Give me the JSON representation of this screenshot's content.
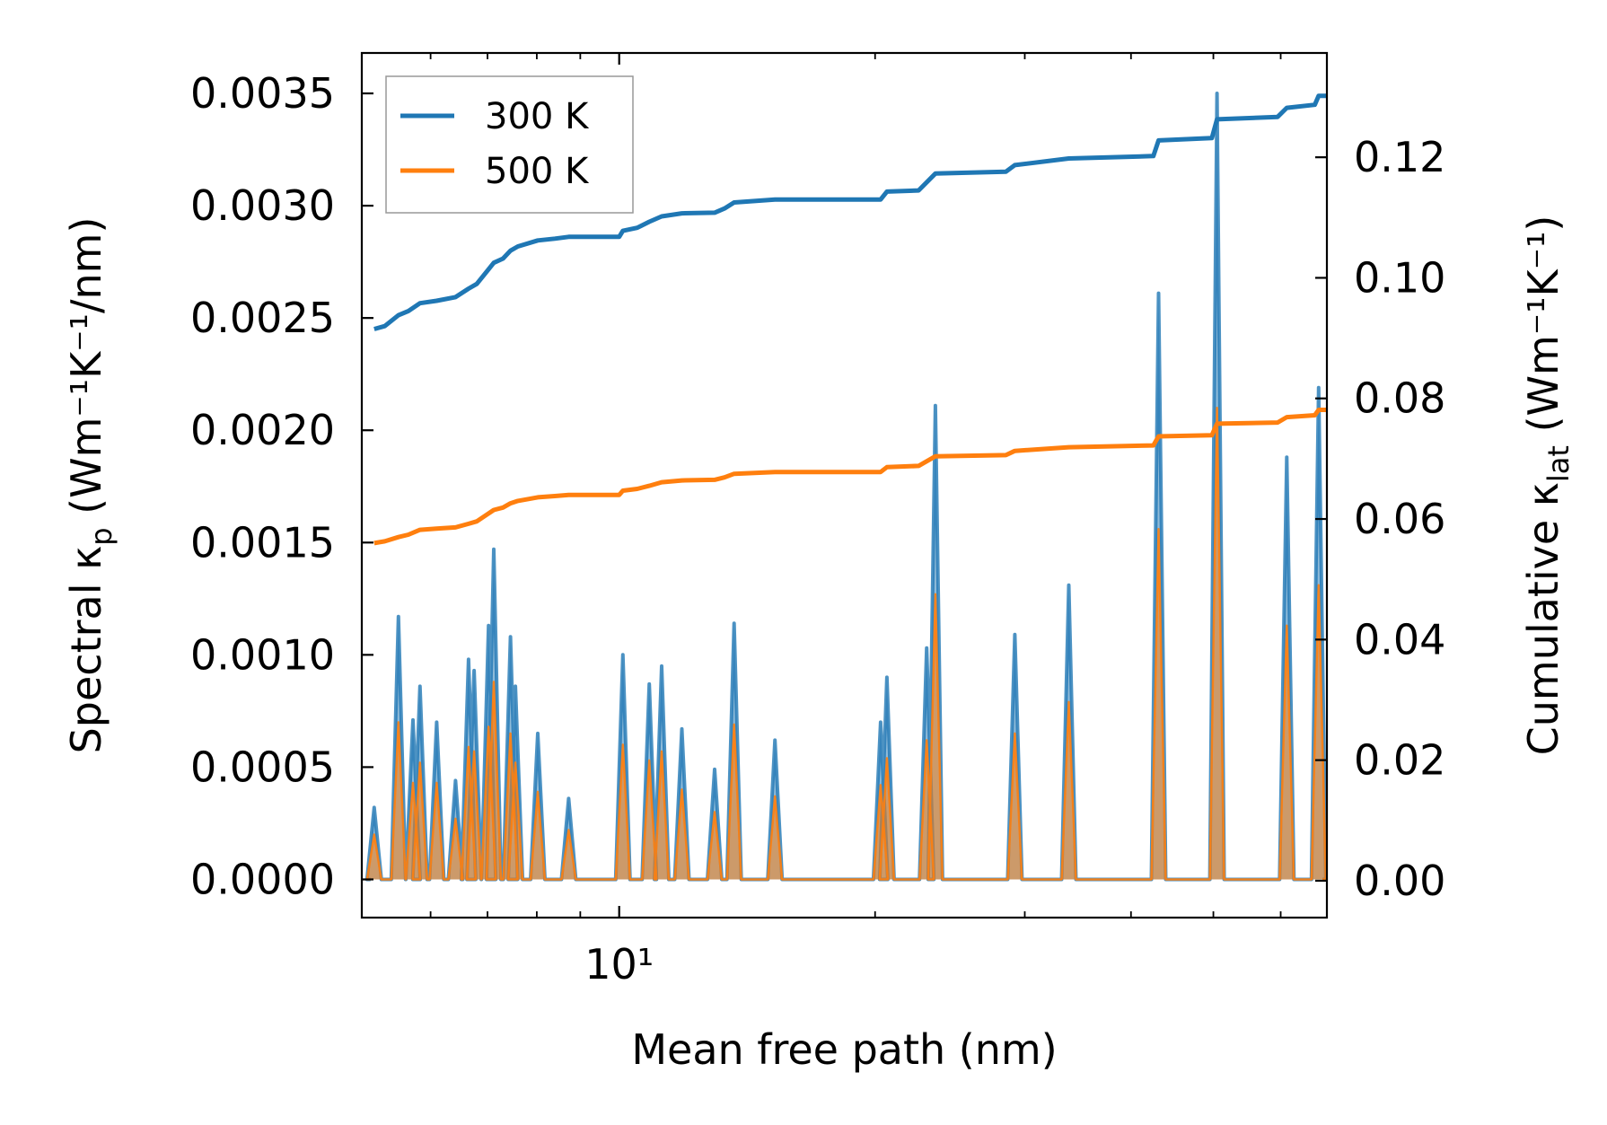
{
  "chart_data": {
    "type": "line",
    "title": "",
    "xlabel": "Mean free path (nm)",
    "ylabel_left": {
      "main": "Spectral κ",
      "sub": "p",
      "unit": " (Wm⁻¹K⁻¹/nm)"
    },
    "ylabel_right": {
      "main": "Cumulative κ",
      "sub": "lat",
      "unit": " (Wm⁻¹K⁻¹)"
    },
    "xscale": "log",
    "xlim": [
      4.98,
      68.0
    ],
    "ylim_left": [
      -0.00017,
      0.00368
    ],
    "ylim_right": [
      -0.00612,
      0.1373
    ],
    "x_major_tick": {
      "value": 10,
      "label": "10¹"
    },
    "x_minor_ticks": [
      6,
      7,
      8,
      9,
      20,
      30,
      40,
      50,
      60
    ],
    "yticks_left": [
      {
        "value": 0.0,
        "label": "0.0000"
      },
      {
        "value": 0.0005,
        "label": "0.0005"
      },
      {
        "value": 0.001,
        "label": "0.0010"
      },
      {
        "value": 0.0015,
        "label": "0.0015"
      },
      {
        "value": 0.002,
        "label": "0.0020"
      },
      {
        "value": 0.0025,
        "label": "0.0025"
      },
      {
        "value": 0.003,
        "label": "0.0030"
      },
      {
        "value": 0.0035,
        "label": "0.0035"
      }
    ],
    "yticks_right": [
      {
        "value": 0.0,
        "label": "0.00"
      },
      {
        "value": 0.02,
        "label": "0.02"
      },
      {
        "value": 0.04,
        "label": "0.04"
      },
      {
        "value": 0.06,
        "label": "0.06"
      },
      {
        "value": 0.08,
        "label": "0.08"
      },
      {
        "value": 0.1,
        "label": "0.10"
      },
      {
        "value": 0.12,
        "label": "0.12"
      }
    ],
    "legend": {
      "placement": "top-left",
      "entries": [
        {
          "name": "300 K",
          "color": "#1f77b4"
        },
        {
          "name": "500 K",
          "color": "#ff7f0e"
        }
      ]
    },
    "spectral_series": [
      {
        "name": "300 K",
        "color": "#1f77b4",
        "axis": "left",
        "peaks": [
          {
            "x": 5.15,
            "y": 0.00032
          },
          {
            "x": 5.5,
            "y": 0.00117
          },
          {
            "x": 5.72,
            "y": 0.00071
          },
          {
            "x": 5.83,
            "y": 0.00086
          },
          {
            "x": 6.1,
            "y": 0.0007
          },
          {
            "x": 6.42,
            "y": 0.00044
          },
          {
            "x": 6.65,
            "y": 0.00098
          },
          {
            "x": 6.75,
            "y": 0.00093
          },
          {
            "x": 7.02,
            "y": 0.00113
          },
          {
            "x": 7.12,
            "y": 0.00147
          },
          {
            "x": 7.45,
            "y": 0.00108
          },
          {
            "x": 7.55,
            "y": 0.00086
          },
          {
            "x": 8.02,
            "y": 0.00065
          },
          {
            "x": 8.72,
            "y": 0.00036
          },
          {
            "x": 10.1,
            "y": 0.001
          },
          {
            "x": 10.85,
            "y": 0.00087
          },
          {
            "x": 11.22,
            "y": 0.00095
          },
          {
            "x": 11.85,
            "y": 0.00067
          },
          {
            "x": 12.95,
            "y": 0.00049
          },
          {
            "x": 13.65,
            "y": 0.00114
          },
          {
            "x": 15.25,
            "y": 0.00062
          },
          {
            "x": 20.3,
            "y": 0.0007
          },
          {
            "x": 20.65,
            "y": 0.0009
          },
          {
            "x": 23.0,
            "y": 0.00103
          },
          {
            "x": 23.55,
            "y": 0.00211
          },
          {
            "x": 29.2,
            "y": 0.00109
          },
          {
            "x": 33.8,
            "y": 0.00131
          },
          {
            "x": 43.1,
            "y": 0.00261
          },
          {
            "x": 50.5,
            "y": 0.0035
          },
          {
            "x": 61.0,
            "y": 0.00188
          },
          {
            "x": 66.5,
            "y": 0.00219
          }
        ]
      },
      {
        "name": "500 K",
        "color": "#ff7f0e",
        "axis": "left",
        "peaks": [
          {
            "x": 5.15,
            "y": 0.0002
          },
          {
            "x": 5.5,
            "y": 0.0007
          },
          {
            "x": 5.72,
            "y": 0.00043
          },
          {
            "x": 5.83,
            "y": 0.00052
          },
          {
            "x": 6.1,
            "y": 0.00043
          },
          {
            "x": 6.42,
            "y": 0.00027
          },
          {
            "x": 6.65,
            "y": 0.00059
          },
          {
            "x": 6.75,
            "y": 0.00057
          },
          {
            "x": 7.02,
            "y": 0.00068
          },
          {
            "x": 7.12,
            "y": 0.00088
          },
          {
            "x": 7.45,
            "y": 0.00065
          },
          {
            "x": 7.55,
            "y": 0.00052
          },
          {
            "x": 8.02,
            "y": 0.00039
          },
          {
            "x": 8.72,
            "y": 0.00022
          },
          {
            "x": 10.1,
            "y": 0.0006
          },
          {
            "x": 10.85,
            "y": 0.00053
          },
          {
            "x": 11.22,
            "y": 0.00057
          },
          {
            "x": 11.85,
            "y": 0.0004
          },
          {
            "x": 12.95,
            "y": 0.0003
          },
          {
            "x": 13.65,
            "y": 0.00069
          },
          {
            "x": 15.25,
            "y": 0.00037
          },
          {
            "x": 20.3,
            "y": 0.00042
          },
          {
            "x": 20.65,
            "y": 0.00054
          },
          {
            "x": 23.0,
            "y": 0.00062
          },
          {
            "x": 23.55,
            "y": 0.00127
          },
          {
            "x": 29.2,
            "y": 0.00065
          },
          {
            "x": 33.8,
            "y": 0.00079
          },
          {
            "x": 43.1,
            "y": 0.00156
          },
          {
            "x": 50.5,
            "y": 0.0021
          },
          {
            "x": 61.0,
            "y": 0.00113
          },
          {
            "x": 66.5,
            "y": 0.00131
          }
        ]
      }
    ],
    "cumulative_series": [
      {
        "name": "300 K",
        "color": "#1f77b4",
        "axis": "right",
        "points": [
          [
            5.15,
            0.0915
          ],
          [
            5.3,
            0.092
          ],
          [
            5.5,
            0.0938
          ],
          [
            5.65,
            0.0945
          ],
          [
            5.83,
            0.0958
          ],
          [
            6.1,
            0.0962
          ],
          [
            6.42,
            0.0968
          ],
          [
            6.65,
            0.0982
          ],
          [
            6.8,
            0.099
          ],
          [
            7.0,
            0.1012
          ],
          [
            7.12,
            0.1025
          ],
          [
            7.3,
            0.1032
          ],
          [
            7.45,
            0.1045
          ],
          [
            7.6,
            0.1052
          ],
          [
            8.02,
            0.1062
          ],
          [
            8.4,
            0.1065
          ],
          [
            8.72,
            0.1068
          ],
          [
            10.0,
            0.1068
          ],
          [
            10.1,
            0.1078
          ],
          [
            10.5,
            0.1083
          ],
          [
            10.85,
            0.1093
          ],
          [
            11.22,
            0.1102
          ],
          [
            11.85,
            0.1107
          ],
          [
            12.95,
            0.1108
          ],
          [
            13.3,
            0.1115
          ],
          [
            13.65,
            0.1125
          ],
          [
            15.25,
            0.113
          ],
          [
            20.3,
            0.113
          ],
          [
            20.65,
            0.1143
          ],
          [
            22.5,
            0.1145
          ],
          [
            23.55,
            0.1173
          ],
          [
            28.5,
            0.1176
          ],
          [
            29.2,
            0.1187
          ],
          [
            33.8,
            0.1198
          ],
          [
            42.5,
            0.1202
          ],
          [
            43.1,
            0.1228
          ],
          [
            49.8,
            0.1232
          ],
          [
            50.5,
            0.1263
          ],
          [
            59.5,
            0.1267
          ],
          [
            61.0,
            0.1282
          ],
          [
            65.8,
            0.1287
          ],
          [
            66.5,
            0.1302
          ],
          [
            68.0,
            0.1302
          ]
        ]
      },
      {
        "name": "500 K",
        "color": "#ff7f0e",
        "axis": "right",
        "points": [
          [
            5.15,
            0.056
          ],
          [
            5.3,
            0.0563
          ],
          [
            5.5,
            0.057
          ],
          [
            5.65,
            0.0574
          ],
          [
            5.83,
            0.0582
          ],
          [
            6.1,
            0.0584
          ],
          [
            6.42,
            0.0586
          ],
          [
            6.65,
            0.0592
          ],
          [
            6.8,
            0.0596
          ],
          [
            7.0,
            0.0608
          ],
          [
            7.12,
            0.0615
          ],
          [
            7.3,
            0.0619
          ],
          [
            7.45,
            0.0626
          ],
          [
            7.6,
            0.063
          ],
          [
            8.02,
            0.0636
          ],
          [
            8.4,
            0.0638
          ],
          [
            8.72,
            0.064
          ],
          [
            10.0,
            0.064
          ],
          [
            10.1,
            0.0647
          ],
          [
            10.5,
            0.065
          ],
          [
            10.85,
            0.0655
          ],
          [
            11.22,
            0.0661
          ],
          [
            11.85,
            0.0664
          ],
          [
            12.95,
            0.0665
          ],
          [
            13.3,
            0.0669
          ],
          [
            13.65,
            0.0675
          ],
          [
            15.25,
            0.0678
          ],
          [
            20.3,
            0.0678
          ],
          [
            20.65,
            0.0686
          ],
          [
            22.5,
            0.0688
          ],
          [
            23.55,
            0.0704
          ],
          [
            28.5,
            0.0706
          ],
          [
            29.2,
            0.0713
          ],
          [
            33.8,
            0.0719
          ],
          [
            42.5,
            0.0722
          ],
          [
            43.1,
            0.0737
          ],
          [
            49.8,
            0.0739
          ],
          [
            50.5,
            0.0758
          ],
          [
            59.5,
            0.076
          ],
          [
            61.0,
            0.0769
          ],
          [
            65.8,
            0.0772
          ],
          [
            66.5,
            0.0781
          ],
          [
            68.0,
            0.0781
          ]
        ]
      }
    ]
  }
}
